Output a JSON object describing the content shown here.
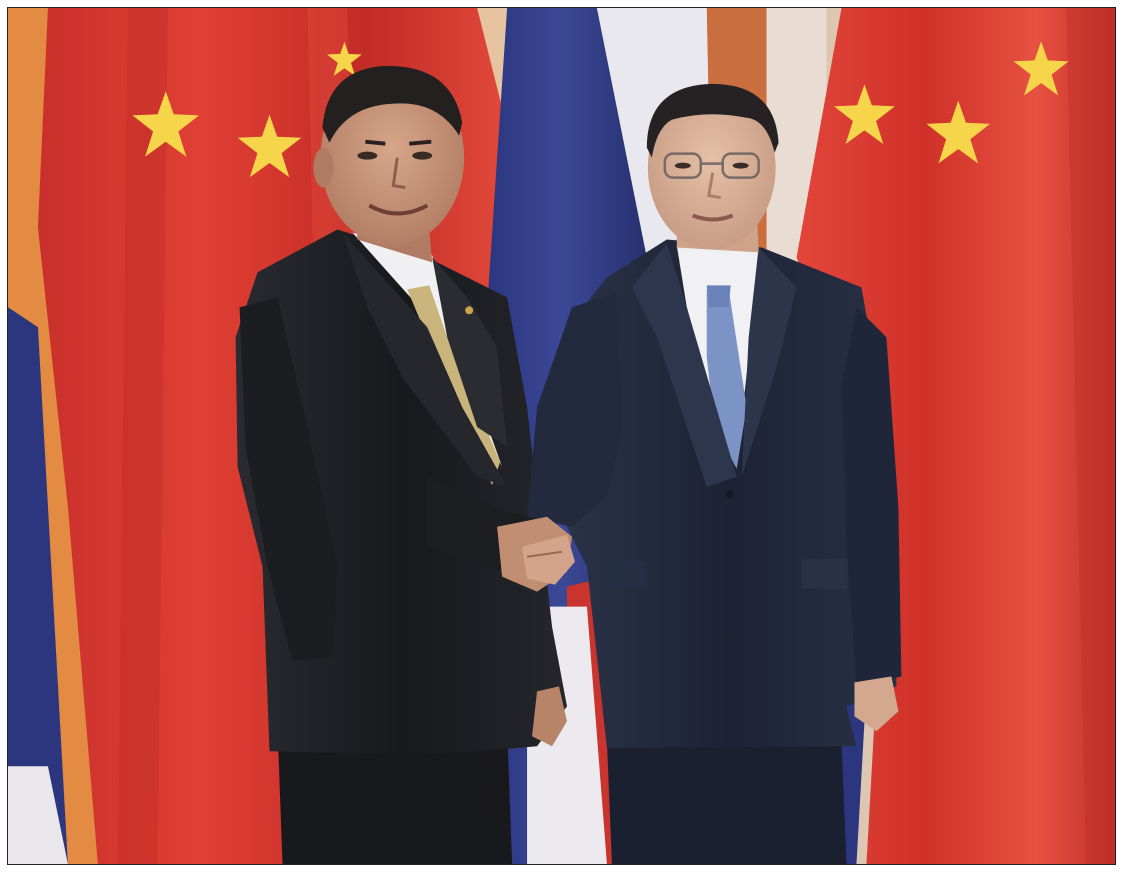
{
  "scene": {
    "kind": "photograph",
    "subject": "two-men-handshake-in-front-of-flags",
    "colors": {
      "china_red": "#d8352c",
      "china_red_dark": "#b3231e",
      "star_yellow": "#f6d54a",
      "thai_blue": "#2e3a86",
      "thai_white": "#ecebee",
      "thai_red": "#c9342e",
      "backdrop_orange": "#e2873e",
      "wall": "#d7c8bd",
      "suit_dark": "#1e1f24",
      "suit_navy": "#232a3e",
      "skin": "#c99a7e",
      "skin_light": "#dcb29a",
      "hair": "#23201f",
      "shirt": "#f1f0f2",
      "tie_gold": "#c9b47c",
      "tie_blue": "#7c93c6"
    },
    "icons": [
      "china-flag-left",
      "thai-flag-left",
      "thai-flag-center",
      "china-flag-right"
    ]
  }
}
